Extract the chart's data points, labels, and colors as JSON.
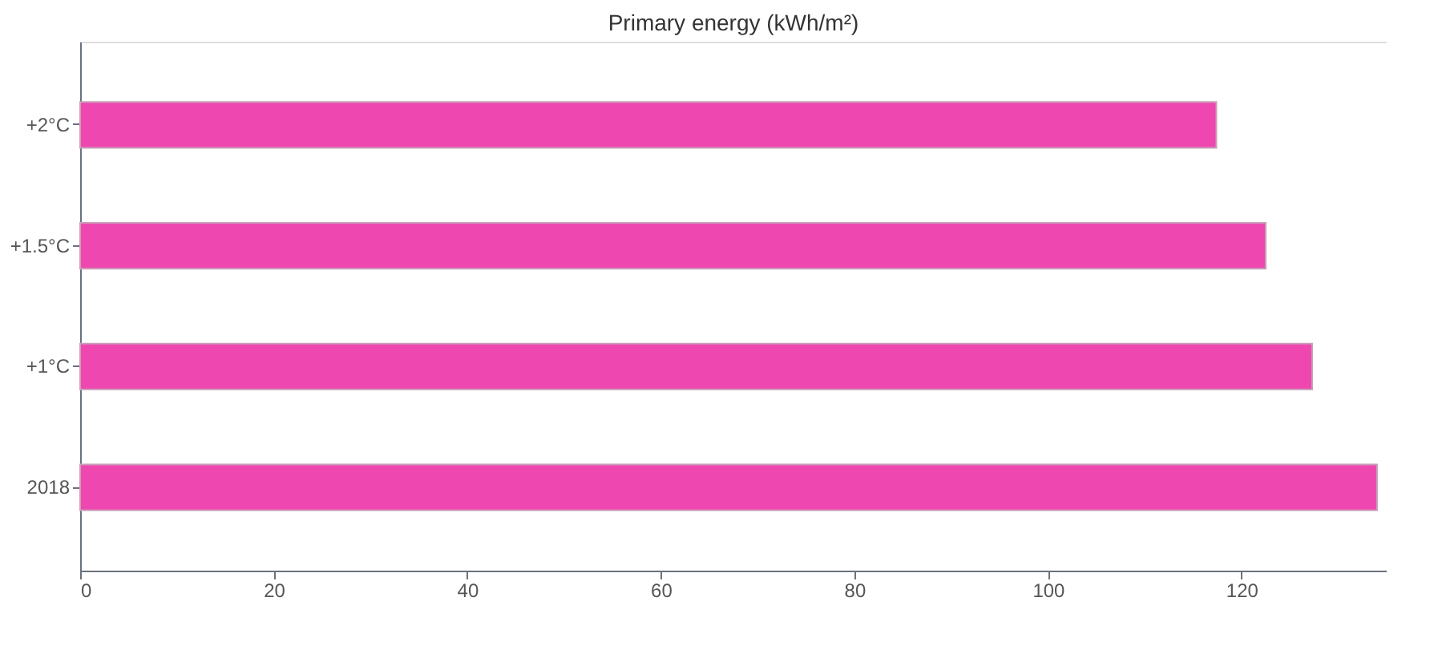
{
  "chart_data": {
    "type": "bar",
    "orientation": "horizontal",
    "title": "Primary energy (kWh/m²)",
    "categories": [
      "+2°C",
      "+1.5°C",
      "+1°C",
      "2018"
    ],
    "series": [
      {
        "color": "#ef47b0",
        "values": [
          117.4,
          122.5,
          127.3,
          134
        ]
      }
    ],
    "xlim": [
      0,
      135
    ],
    "xticks": [
      0,
      20,
      40,
      60,
      80,
      100,
      120
    ],
    "grid": false,
    "legend": false
  }
}
